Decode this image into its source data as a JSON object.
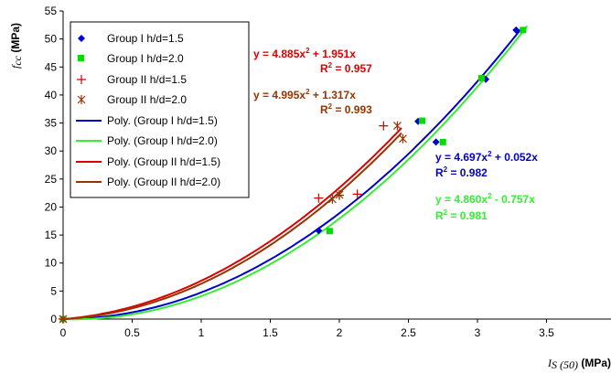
{
  "chart_data": {
    "type": "scatter",
    "xlim": [
      0,
      4
    ],
    "ylim": [
      0,
      55
    ],
    "x_ticks": [
      "0",
      "0.5",
      "1",
      "1.5",
      "2",
      "2.5",
      "3",
      "3.5"
    ],
    "y_ticks": [
      "0",
      "5",
      "10",
      "15",
      "20",
      "25",
      "30",
      "35",
      "40",
      "45",
      "50",
      "55"
    ],
    "xlabel_symbol": "I",
    "xlabel_subscript": "S (50)",
    "xlabel_unit": " (MPa)",
    "ylabel_symbol": "f",
    "ylabel_subscript": "cc",
    "ylabel_unit": " (MPa)",
    "grid": false,
    "legend": "top-left",
    "series": [
      {
        "name": "Group I h/d=1.5",
        "marker": "diamond",
        "color": "#0000cc",
        "points": [
          [
            0,
            0
          ],
          [
            1.85,
            15.8
          ],
          [
            2.57,
            35.3
          ],
          [
            2.7,
            31.6
          ],
          [
            3.06,
            42.8
          ],
          [
            3.28,
            51.6
          ]
        ]
      },
      {
        "name": "Group I h/d=2.0",
        "marker": "square",
        "color": "#00dd00",
        "points": [
          [
            0,
            0
          ],
          [
            1.93,
            15.7
          ],
          [
            2.6,
            35.4
          ],
          [
            2.75,
            31.6
          ],
          [
            3.03,
            43
          ],
          [
            3.33,
            51.6
          ]
        ]
      },
      {
        "name": "Group II h/d=1.5",
        "marker": "plus",
        "color": "#dd0000",
        "points": [
          [
            0,
            0
          ],
          [
            1.85,
            21.6
          ],
          [
            2.0,
            22.1
          ],
          [
            2.13,
            22.3
          ],
          [
            2.32,
            34.5
          ]
        ]
      },
      {
        "name": "Group II h/d=2.0",
        "marker": "star",
        "color": "#993300",
        "points": [
          [
            0,
            0
          ],
          [
            1.95,
            21.4
          ],
          [
            2.0,
            22.2
          ],
          [
            2.42,
            34.5
          ],
          [
            2.46,
            32.2
          ]
        ]
      }
    ],
    "trendlines": [
      {
        "name": "Poly. (Group I h/d=1.5)",
        "color": "#0000cc",
        "a": 4.697,
        "b": 0.052,
        "x_max": 3.32,
        "equation": "y = 4.697x",
        "equation_tail": " + 0.052x",
        "r2_label": "R",
        "r2_value": " = 0.982"
      },
      {
        "name": "Poly. (Group I h/d=2.0)",
        "color": "#33ee33",
        "a": 4.86,
        "b": -0.757,
        "x_max": 3.36,
        "equation": "y = 4.860x",
        "equation_tail": " - 0.757x",
        "r2_label": "R",
        "r2_value": " = 0.981"
      },
      {
        "name": "Poly. (Group II h/d=1.5)",
        "color": "#dd0000",
        "a": 4.885,
        "b": 1.951,
        "x_max": 2.45,
        "equation": "y = 4.885x",
        "equation_tail": " + 1.951x",
        "r2_label": "R",
        "r2_value": " = 0.957"
      },
      {
        "name": "Poly. (Group II h/d=2.0)",
        "color": "#993300",
        "a": 4.995,
        "b": 1.317,
        "x_max": 2.45,
        "equation": "y = 4.995x",
        "equation_tail": " + 1.317x",
        "r2_label": "R",
        "r2_value": " = 0.993"
      }
    ],
    "superscript": "2"
  }
}
